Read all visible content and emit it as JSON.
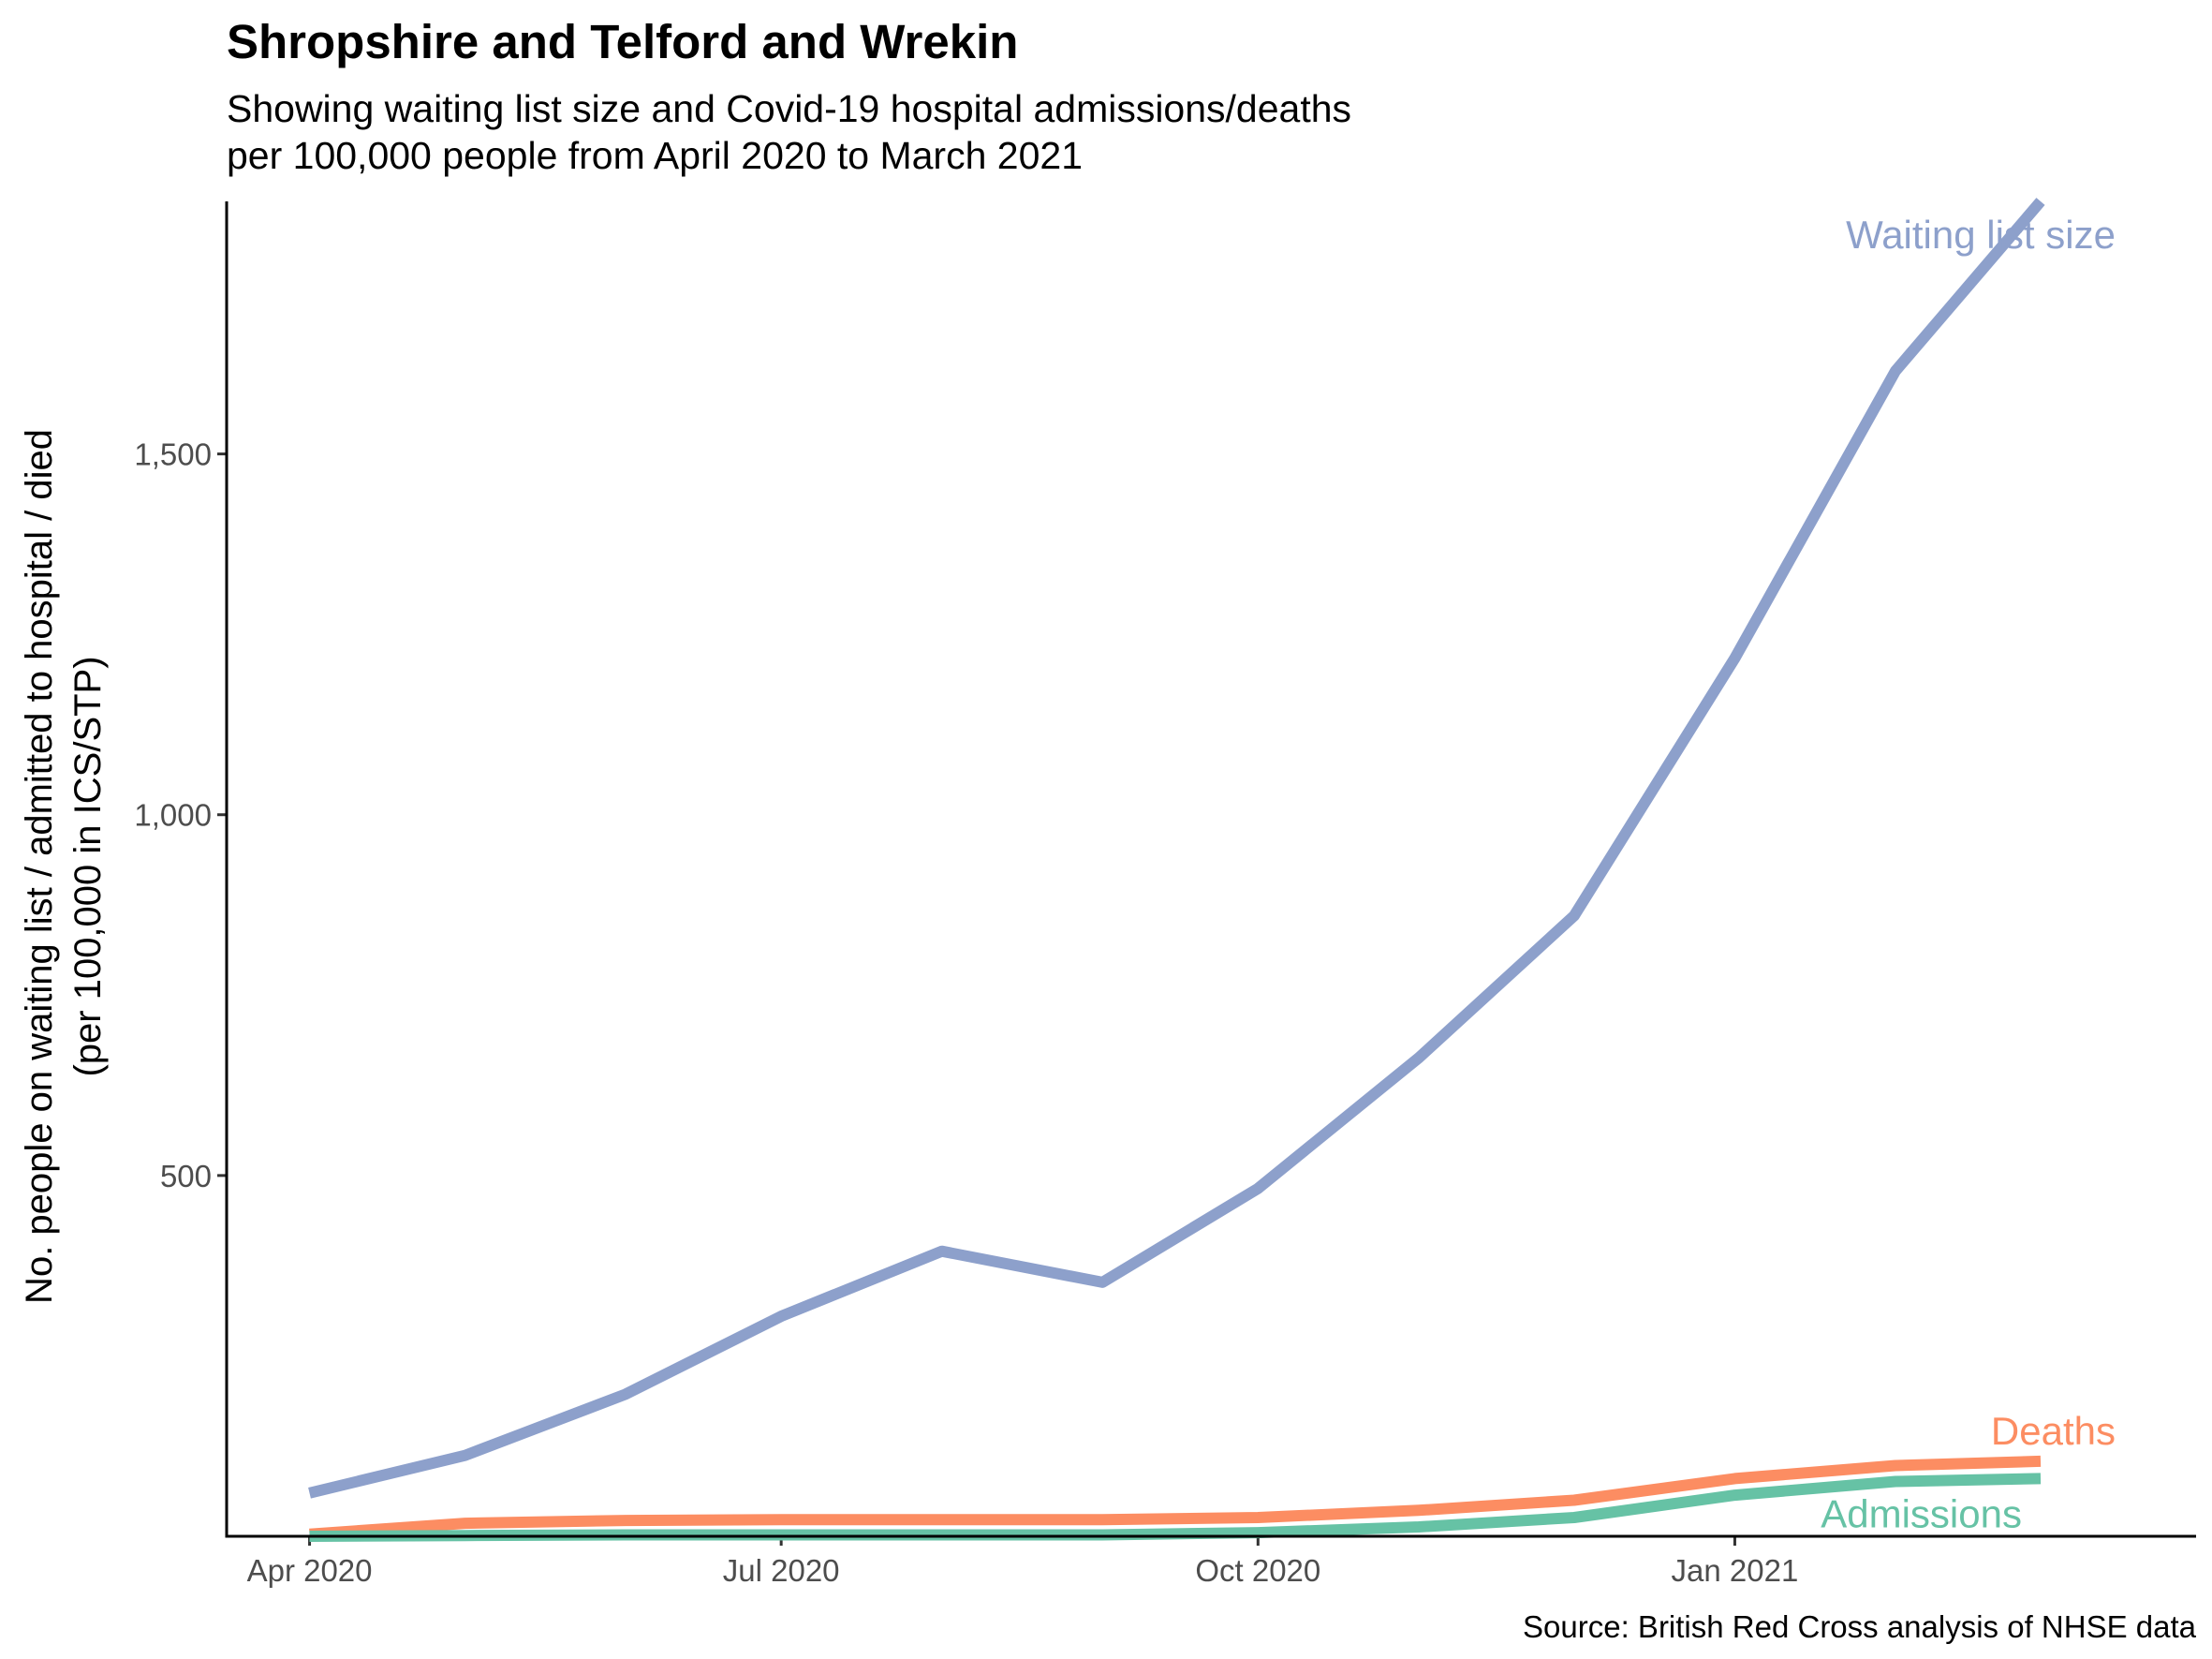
{
  "header": {
    "title": "Shropshire and Telford and Wrekin",
    "subtitle_line1": "Showing waiting list size and Covid-19 hospital admissions/deaths",
    "subtitle_line2": "per 100,000 people from April 2020 to March 2021"
  },
  "axes": {
    "ylabel_line1": "No. people on waiting list / admitted to hospital / died",
    "ylabel_line2": "(per 100,000 in ICS/STP)"
  },
  "caption": "Source: British Red Cross analysis of NHSE data",
  "chart_data": {
    "type": "line",
    "title": "Shropshire and Telford and Wrekin",
    "subtitle": "Showing waiting list size and Covid-19 hospital admissions/deaths per 100,000 people from April 2020 to March 2021",
    "xlabel": "",
    "ylabel": "No. people on waiting list / admitted to hospital / died (per 100,000 in ICS/STP)",
    "x": [
      "2020-04-01",
      "2020-05-01",
      "2020-06-01",
      "2020-07-01",
      "2020-08-01",
      "2020-09-01",
      "2020-10-01",
      "2020-11-01",
      "2020-12-01",
      "2021-01-01",
      "2021-02-01",
      "2021-03-01"
    ],
    "xlim": [
      "2020-03-16",
      "2021-03-31"
    ],
    "x_ticks": [
      {
        "date": "2020-04-01",
        "label": "Apr 2020"
      },
      {
        "date": "2020-07-01",
        "label": "Jul 2020"
      },
      {
        "date": "2020-10-01",
        "label": "Oct 2020"
      },
      {
        "date": "2021-01-01",
        "label": "Jan 2021"
      }
    ],
    "ylim": [
      0,
      1850
    ],
    "y_ticks": [
      {
        "value": 500,
        "label": "500"
      },
      {
        "value": 1000,
        "label": "1,000"
      },
      {
        "value": 1500,
        "label": "1,500"
      }
    ],
    "grid": false,
    "legend": "none (direct labels at line ends)",
    "series": [
      {
        "name": "Waiting list size",
        "color": "#8da0cb",
        "values": [
          60,
          112,
          197,
          305,
          395,
          352,
          482,
          663,
          860,
          1217,
          1615,
          1850
        ]
      },
      {
        "name": "Deaths",
        "color": "#fc8d62",
        "values": [
          3,
          18,
          22,
          23,
          23,
          23,
          26,
          36,
          50,
          80,
          98,
          104
        ]
      },
      {
        "name": "Admissions",
        "color": "#66c2a5",
        "values": [
          0,
          1,
          2,
          2,
          2,
          2,
          5,
          13,
          26,
          57,
          76,
          80
        ]
      }
    ]
  }
}
